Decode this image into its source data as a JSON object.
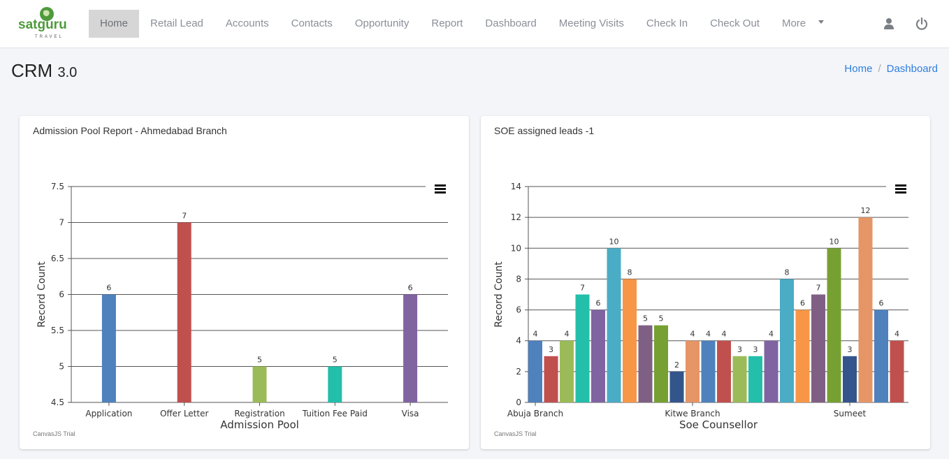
{
  "header": {
    "logo_text": "satguru",
    "logo_subtext": "TRAVEL",
    "nav": [
      {
        "label": "Home",
        "active": true
      },
      {
        "label": "Retail Lead"
      },
      {
        "label": "Accounts"
      },
      {
        "label": "Contacts"
      },
      {
        "label": "Opportunity"
      },
      {
        "label": "Report"
      },
      {
        "label": "Dashboard"
      },
      {
        "label": "Meeting Visits"
      },
      {
        "label": "Check In"
      },
      {
        "label": "Check Out"
      },
      {
        "label": "More"
      }
    ],
    "icons": {
      "user": "user-icon",
      "power": "power-icon"
    }
  },
  "page": {
    "title": "CRM",
    "version": "3.0",
    "breadcrumb": [
      {
        "label": "Home"
      },
      {
        "label": "Dashboard"
      }
    ],
    "breadcrumb_sep": "/"
  },
  "colors": {
    "brand_green": "#5a9a3a",
    "brand_orange": "#e07b2a",
    "link": "#2f7ee0",
    "palette": [
      "#4f81bc",
      "#c0504e",
      "#9bbb58",
      "#23bfaa",
      "#8064a1",
      "#4aacc5",
      "#f79647",
      "#7f6084",
      "#77a033",
      "#33558b",
      "#e59566"
    ]
  },
  "chart_data": [
    {
      "type": "bar",
      "card_title": "Admission Pool Report - Ahmedabad Branch",
      "title": "",
      "xlabel": "Admission Pool",
      "ylabel": "Record Count",
      "categories": [
        "Application",
        "Offer Letter",
        "Registration",
        "Tuition Fee Paid",
        "Visa"
      ],
      "values": [
        6,
        7,
        5,
        5,
        6
      ],
      "colors": [
        "#4f81bc",
        "#c0504e",
        "#9bbb58",
        "#23bfaa",
        "#8064a1"
      ],
      "ylim": [
        4.5,
        7.5
      ],
      "yticks": [
        4.5,
        5,
        5.5,
        6,
        6.5,
        7,
        7.5
      ],
      "grid": true,
      "data_labels": true,
      "watermark": "CanvasJS Trial",
      "menu_icon": "hamburger-menu-icon"
    },
    {
      "type": "bar",
      "card_title": "SOE assigned leads -1",
      "title": "",
      "xlabel": "Soe Counsellor",
      "ylabel": "Record Count",
      "tick_labels": [
        {
          "label": "Abuja Branch",
          "index": 0
        },
        {
          "label": "Kitwe Branch",
          "index": 10
        },
        {
          "label": "Sumeet",
          "index": 20
        }
      ],
      "values": [
        4,
        3,
        4,
        7,
        6,
        10,
        8,
        5,
        5,
        2,
        4,
        4,
        4,
        3,
        3,
        4,
        8,
        6,
        7,
        10,
        3,
        12,
        6,
        4
      ],
      "colors": [
        "#4f81bc",
        "#c0504e",
        "#9bbb58",
        "#23bfaa",
        "#8064a1",
        "#4aacc5",
        "#f79647",
        "#7f6084",
        "#77a033",
        "#33558b",
        "#e59566",
        "#4f81bc",
        "#c0504e",
        "#9bbb58",
        "#23bfaa",
        "#8064a1",
        "#4aacc5",
        "#f79647",
        "#7f6084",
        "#77a033",
        "#33558b",
        "#e59566",
        "#4f81bc",
        "#c0504e"
      ],
      "ylim": [
        0,
        14
      ],
      "yticks": [
        0,
        2,
        4,
        6,
        8,
        10,
        12,
        14
      ],
      "grid": true,
      "data_labels": true,
      "watermark": "CanvasJS Trial",
      "menu_icon": "hamburger-menu-icon"
    }
  ]
}
